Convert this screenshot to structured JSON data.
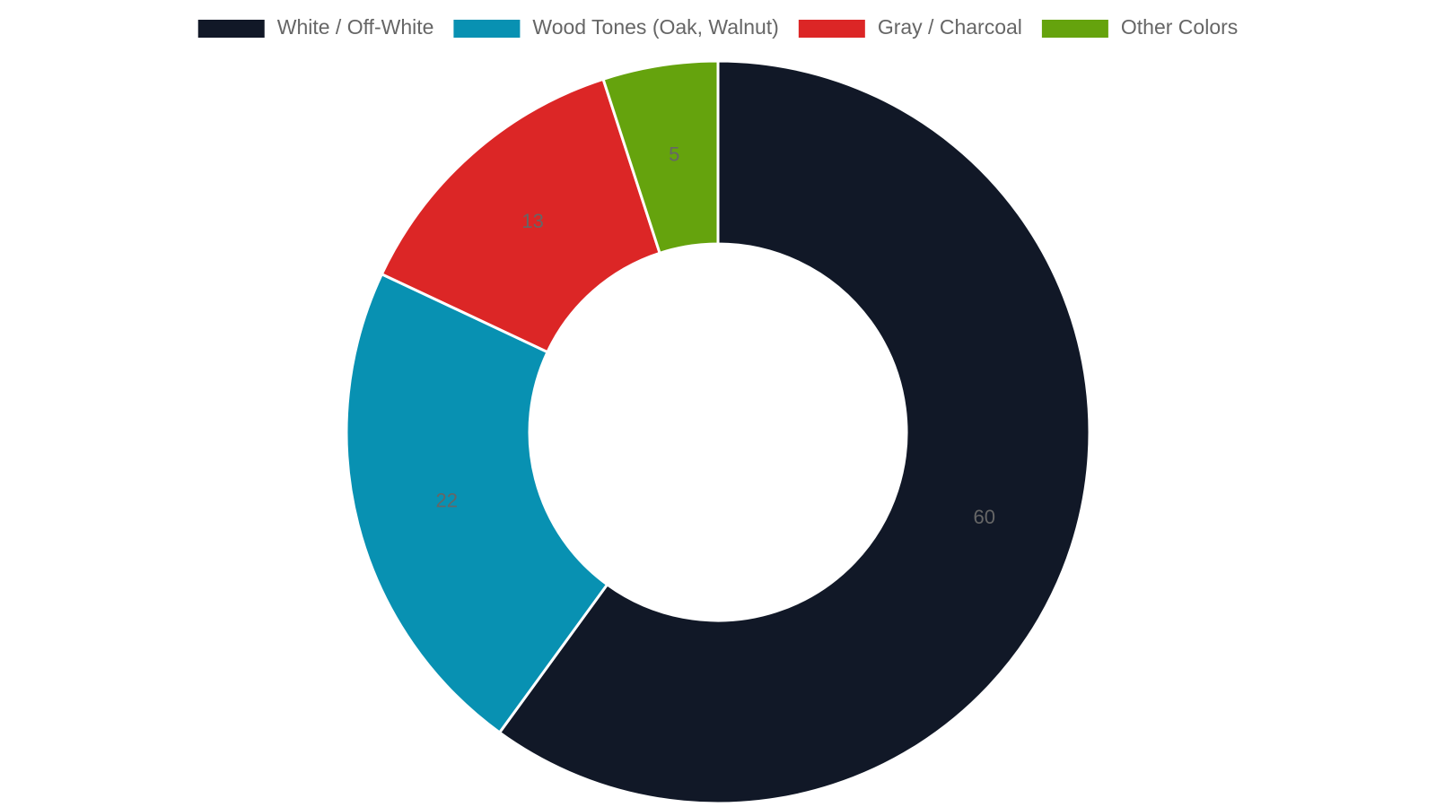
{
  "chart_data": {
    "type": "doughnut",
    "categories": [
      "White / Off-White",
      "Wood Tones (Oak, Walnut)",
      "Gray / Charcoal",
      "Other Colors"
    ],
    "values": [
      60,
      22,
      13,
      5
    ],
    "colors": [
      "#111827",
      "#0891b2",
      "#dc2626",
      "#65a30d"
    ],
    "legend_position": "top"
  }
}
